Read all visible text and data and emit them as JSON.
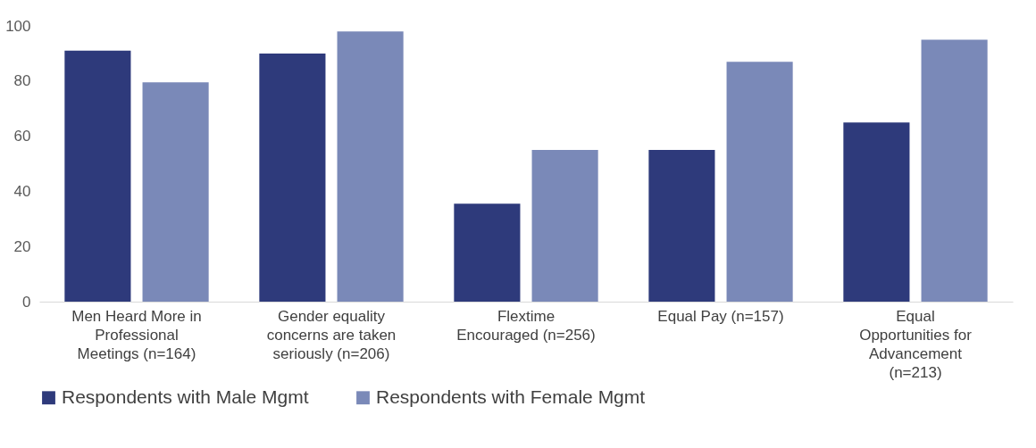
{
  "chart_data": {
    "type": "bar",
    "categories": [
      "Men Heard More in Professional Meetings (n=164)",
      "Gender equality concerns are taken seriously (n=206)",
      "Flextime Encouraged (n=256)",
      "Equal Pay (n=157)",
      "Equal Opportunities for Advancement (n=213)"
    ],
    "series": [
      {
        "name": "Respondents with Male Mgmt",
        "color": "#2e3a7b",
        "values": [
          91,
          90,
          35.5,
          55,
          65
        ]
      },
      {
        "name": "Respondents with Female Mgmt",
        "color": "#7a89b8",
        "values": [
          79.5,
          98,
          55,
          87,
          95
        ]
      }
    ],
    "ylim": [
      0,
      100
    ],
    "yticks": [
      0,
      20,
      40,
      60,
      80,
      100
    ],
    "grid": false,
    "legend": "bottom"
  }
}
